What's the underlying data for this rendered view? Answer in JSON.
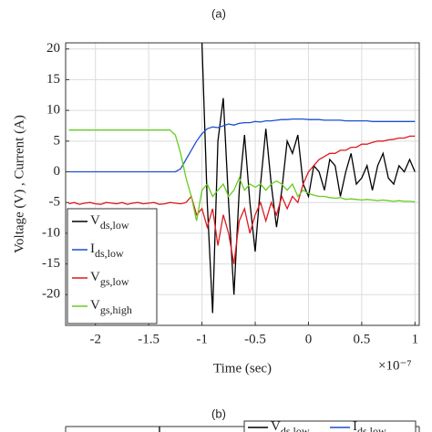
{
  "chart_data": {
    "type": "line",
    "title": "(a)",
    "x_label": "Time (sec)",
    "x_exponent": "×10⁻⁷",
    "y_label": "Voltage (V) , Current (A)",
    "x": [
      -2.25,
      -2.2,
      -2.15,
      -2.1,
      -2.05,
      -2,
      -1.95,
      -1.9,
      -1.85,
      -1.8,
      -1.75,
      -1.7,
      -1.65,
      -1.6,
      -1.55,
      -1.5,
      -1.45,
      -1.4,
      -1.35,
      -1.3,
      -1.25,
      -1.2,
      -1.15,
      -1.1,
      -1.05,
      -1,
      -0.95,
      -0.9,
      -0.85,
      -0.8,
      -0.75,
      -0.7,
      -0.65,
      -0.6,
      -0.55,
      -0.5,
      -0.45,
      -0.4,
      -0.35,
      -0.3,
      -0.25,
      -0.2,
      -0.15,
      -0.1,
      -0.05,
      0,
      0.05,
      0.1,
      0.15,
      0.2,
      0.25,
      0.3,
      0.35,
      0.4,
      0.45,
      0.5,
      0.55,
      0.6,
      0.65,
      0.7,
      0.75,
      0.8,
      0.85,
      0.9,
      0.95,
      1
    ],
    "series": [
      {
        "name": "Vds,low",
        "color": "#000000",
        "values": [
          null,
          null,
          null,
          null,
          null,
          null,
          null,
          null,
          null,
          null,
          null,
          null,
          null,
          null,
          null,
          null,
          null,
          null,
          null,
          null,
          null,
          null,
          null,
          null,
          null,
          21,
          -5,
          -23,
          5,
          12,
          -5,
          -20,
          -3,
          6,
          -5,
          -13,
          -2,
          7,
          -2,
          -9,
          -3,
          5,
          3,
          6,
          -2,
          -4,
          1,
          0,
          -3,
          2,
          1,
          -4,
          0,
          3,
          -2,
          -1,
          1,
          -3,
          1,
          3,
          -1,
          -2,
          1,
          0,
          2,
          0
        ]
      },
      {
        "name": "Ids,low",
        "color": "#1f4fd0",
        "values": [
          0,
          0,
          0,
          0,
          0,
          0,
          0,
          0,
          0,
          0,
          0,
          0,
          0,
          0,
          0,
          0,
          0,
          0,
          0,
          0,
          0,
          0.5,
          2,
          3.5,
          5,
          6.2,
          7,
          7.3,
          7.2,
          7.5,
          7.8,
          7.6,
          7.9,
          8,
          8,
          8.2,
          8.1,
          8.3,
          8.3,
          8.4,
          8.5,
          8.5,
          8.6,
          8.6,
          8.6,
          8.5,
          8.5,
          8.5,
          8.4,
          8.4,
          8.4,
          8.4,
          8.3,
          8.3,
          8.3,
          8.3,
          8.3,
          8.2,
          8.2,
          8.2,
          8.2,
          8.2,
          8.2,
          8.2,
          8.2,
          8.2
        ]
      },
      {
        "name": "Vgs,low",
        "color": "#e0191f",
        "values": [
          -5.2,
          -5,
          -5.3,
          -5.1,
          -5,
          -5.2,
          -5.3,
          -5,
          -5.1,
          -5.2,
          -5,
          -5.3,
          -5.1,
          -5,
          -5.2,
          -5.1,
          -5,
          -5.3,
          -5.2,
          -5,
          -5.1,
          -5.2,
          -5,
          -4,
          -7,
          -6,
          -9,
          -6,
          -12,
          -7,
          -10,
          -15,
          -8,
          -6,
          -10,
          -7,
          -5,
          -8,
          -5,
          -7,
          -4,
          -6,
          -4,
          -5,
          -2,
          0,
          1,
          2,
          2.5,
          3,
          3,
          3.5,
          3.5,
          4,
          4,
          4.5,
          4.5,
          4.8,
          5,
          5,
          5.2,
          5.3,
          5.5,
          5.5,
          5.8,
          5.8
        ]
      },
      {
        "name": "Vgs,high",
        "color": "#66cc22",
        "values": [
          6.8,
          6.8,
          6.8,
          6.8,
          6.8,
          6.8,
          6.8,
          6.8,
          6.8,
          6.8,
          6.8,
          6.8,
          6.8,
          6.8,
          6.8,
          6.8,
          6.8,
          6.8,
          6.8,
          6.8,
          6,
          3,
          -1,
          -4,
          -8,
          -3,
          -2,
          -4,
          -3,
          -2,
          -4,
          -3,
          -1,
          -3,
          -2,
          -2.5,
          -2,
          -3,
          -2,
          -1.5,
          -2,
          -3,
          -2,
          -4,
          -3,
          -3.5,
          -3.8,
          -4,
          -4,
          -4.2,
          -4.3,
          -4.2,
          -4.5,
          -4.4,
          -4.5,
          -4.6,
          -4.5,
          -4.6,
          -4.7,
          -4.6,
          -4.7,
          -4.8,
          -4.7,
          -4.8,
          -4.8,
          -4.9
        ]
      }
    ],
    "xlim": [
      -2.28,
      1.04
    ],
    "ylim": [
      -25,
      21
    ],
    "xticks": [
      -2,
      -1.5,
      -1,
      -0.5,
      0,
      0.5,
      1
    ],
    "yticks": [
      -20,
      -15,
      -10,
      -5,
      0,
      5,
      10,
      15,
      20
    ],
    "grid": true,
    "legend": "lower left"
  },
  "panel_b": {
    "label": "(b)",
    "legend": [
      {
        "name": "Vds,low",
        "color": "#000000"
      },
      {
        "name": "Ids,low",
        "color": "#1f4fd0"
      }
    ]
  }
}
